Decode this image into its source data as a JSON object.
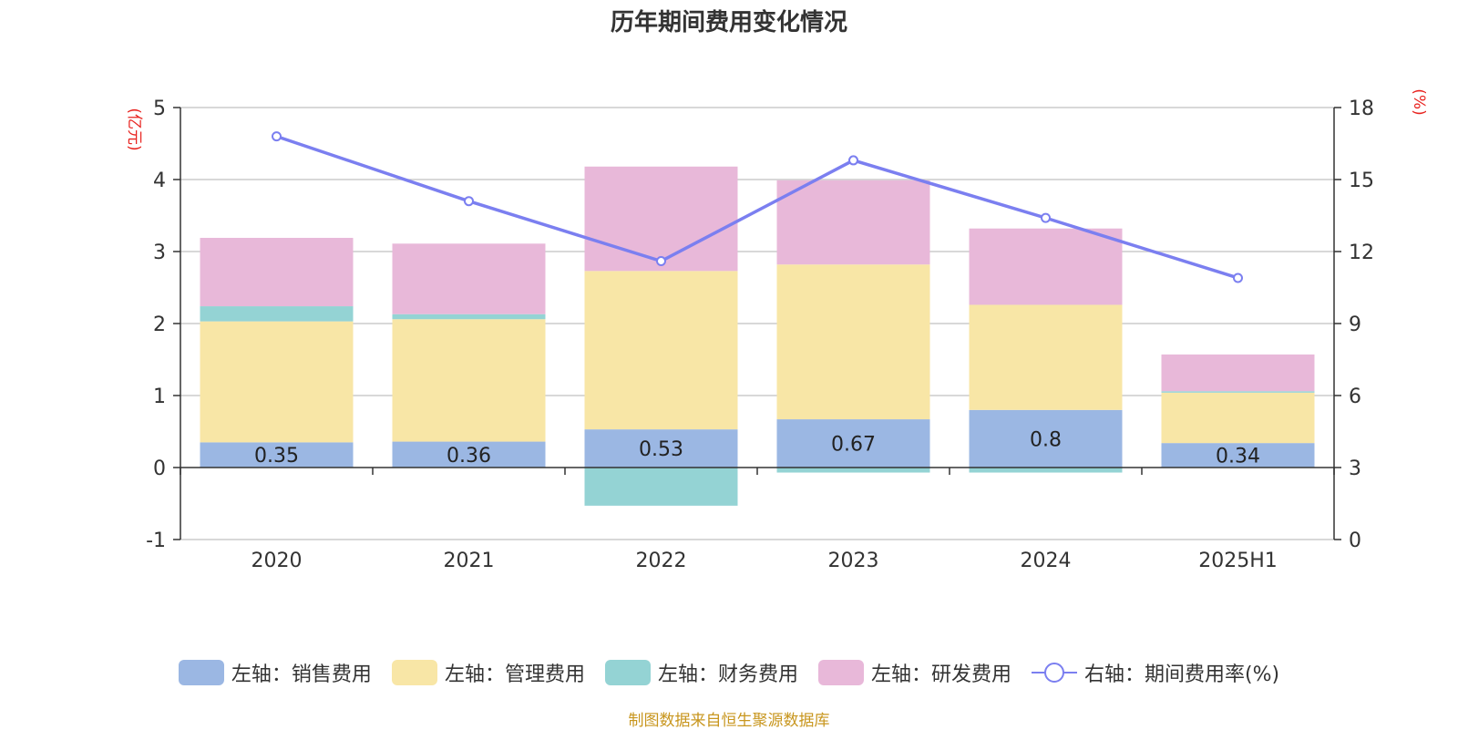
{
  "source_note": "制图数据来自恒生聚源数据库",
  "colors": {
    "sales": "#9bb7e3",
    "admin": "#f8e6a6",
    "finance": "#94d3d4",
    "rd": "#e8b8d9",
    "rate": "#7b7ff0",
    "unit": "#e8231f"
  },
  "chart_data": {
    "type": "bar",
    "stacked": true,
    "title": "历年期间费用变化情况",
    "categories": [
      "2020",
      "2021",
      "2022",
      "2023",
      "2024",
      "2025H1"
    ],
    "y_left": {
      "label": "(亿元)",
      "range": [
        -1,
        5
      ],
      "ticks": [
        "-1",
        "0",
        "1",
        "2",
        "3",
        "4",
        "5"
      ]
    },
    "y_right": {
      "label": "(%)",
      "range": [
        0,
        18
      ],
      "ticks": [
        "0",
        "3",
        "6",
        "9",
        "12",
        "15",
        "18"
      ]
    },
    "series": [
      {
        "name": "左轴：销售费用",
        "key": "sales",
        "axis": "left",
        "values": [
          0.35,
          0.36,
          0.53,
          0.67,
          0.8,
          0.34
        ],
        "labels": [
          "0.35",
          "0.36",
          "0.53",
          "0.67",
          "0.8",
          "0.34"
        ]
      },
      {
        "name": "左轴：管理费用",
        "key": "admin",
        "axis": "left",
        "values": [
          1.68,
          1.7,
          2.2,
          2.15,
          1.46,
          0.7
        ]
      },
      {
        "name": "左轴：财务费用",
        "key": "finance",
        "axis": "left",
        "values": [
          0.21,
          0.07,
          -0.53,
          -0.07,
          -0.07,
          0.02
        ]
      },
      {
        "name": "左轴：研发费用",
        "key": "rd",
        "axis": "left",
        "values": [
          0.95,
          0.98,
          1.45,
          1.17,
          1.06,
          0.51
        ]
      },
      {
        "name": "右轴：期间费用率(%)",
        "key": "rate",
        "axis": "right",
        "type": "line",
        "values": [
          16.8,
          14.1,
          11.6,
          15.8,
          13.4,
          10.9
        ]
      }
    ],
    "grid": true,
    "legend_position": "bottom"
  }
}
